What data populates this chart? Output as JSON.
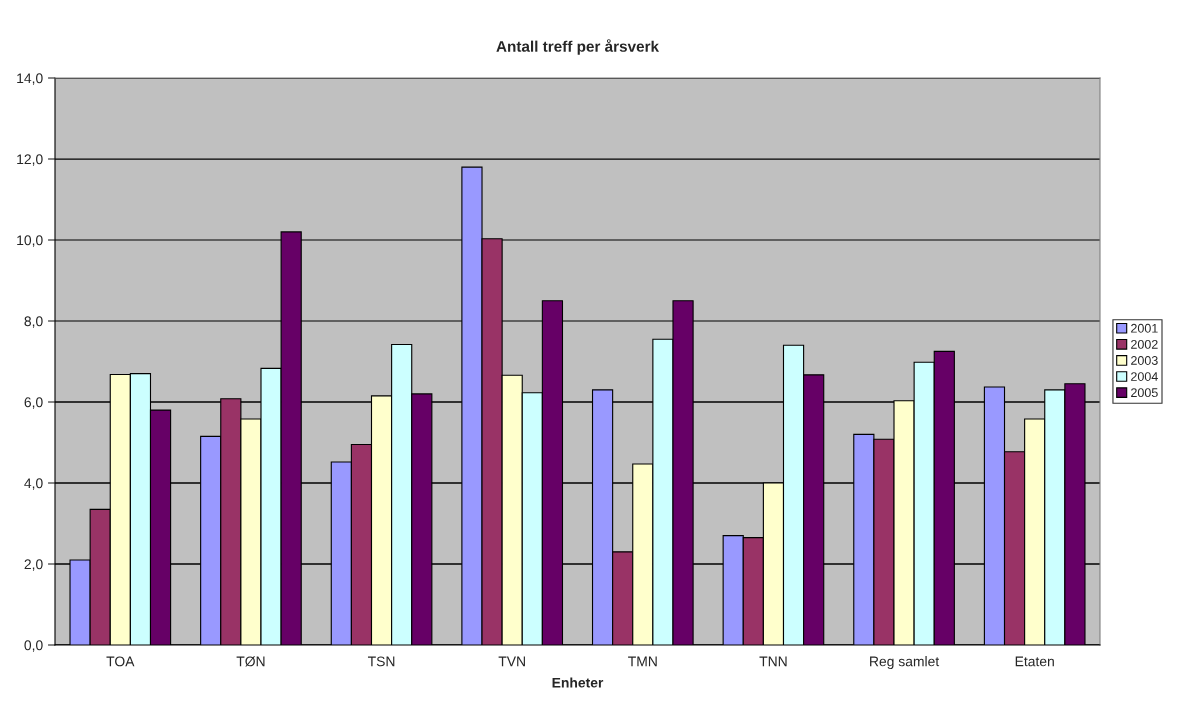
{
  "chart_data": {
    "type": "bar",
    "title": "Antall treff per årsverk",
    "xlabel": "Enheter",
    "categories": [
      "TOA",
      "TØN",
      "TSN",
      "TVN",
      "TMN",
      "TNN",
      "Reg samlet",
      "Etaten"
    ],
    "series": [
      {
        "name": "2001",
        "color": "#9999ff",
        "values": [
          2.1,
          5.15,
          4.52,
          11.8,
          6.3,
          2.7,
          5.2,
          6.37
        ]
      },
      {
        "name": "2002",
        "color": "#993366",
        "values": [
          3.35,
          6.08,
          4.95,
          10.03,
          2.3,
          2.65,
          5.08,
          4.77
        ]
      },
      {
        "name": "2003",
        "color": "#ffffcc",
        "values": [
          6.68,
          5.58,
          6.15,
          6.66,
          4.47,
          4.0,
          6.03,
          5.58
        ]
      },
      {
        "name": "2004",
        "color": "#ccffff",
        "values": [
          6.7,
          6.83,
          7.42,
          6.23,
          7.55,
          7.4,
          6.98,
          6.3
        ]
      },
      {
        "name": "2005",
        "color": "#660066",
        "values": [
          5.8,
          10.2,
          6.2,
          8.5,
          8.5,
          6.67,
          7.25,
          6.45
        ]
      }
    ],
    "ylim": [
      0,
      14
    ],
    "yticks": [
      {
        "value": 0,
        "label": "0,0"
      },
      {
        "value": 2,
        "label": "2,0"
      },
      {
        "value": 4,
        "label": "4,0"
      },
      {
        "value": 6,
        "label": "6,0"
      },
      {
        "value": 8,
        "label": "8,0"
      },
      {
        "value": 10,
        "label": "10,0"
      },
      {
        "value": 12,
        "label": "12,0"
      },
      {
        "value": 14,
        "label": "14,0"
      }
    ],
    "grid": "y",
    "legend": "right"
  }
}
